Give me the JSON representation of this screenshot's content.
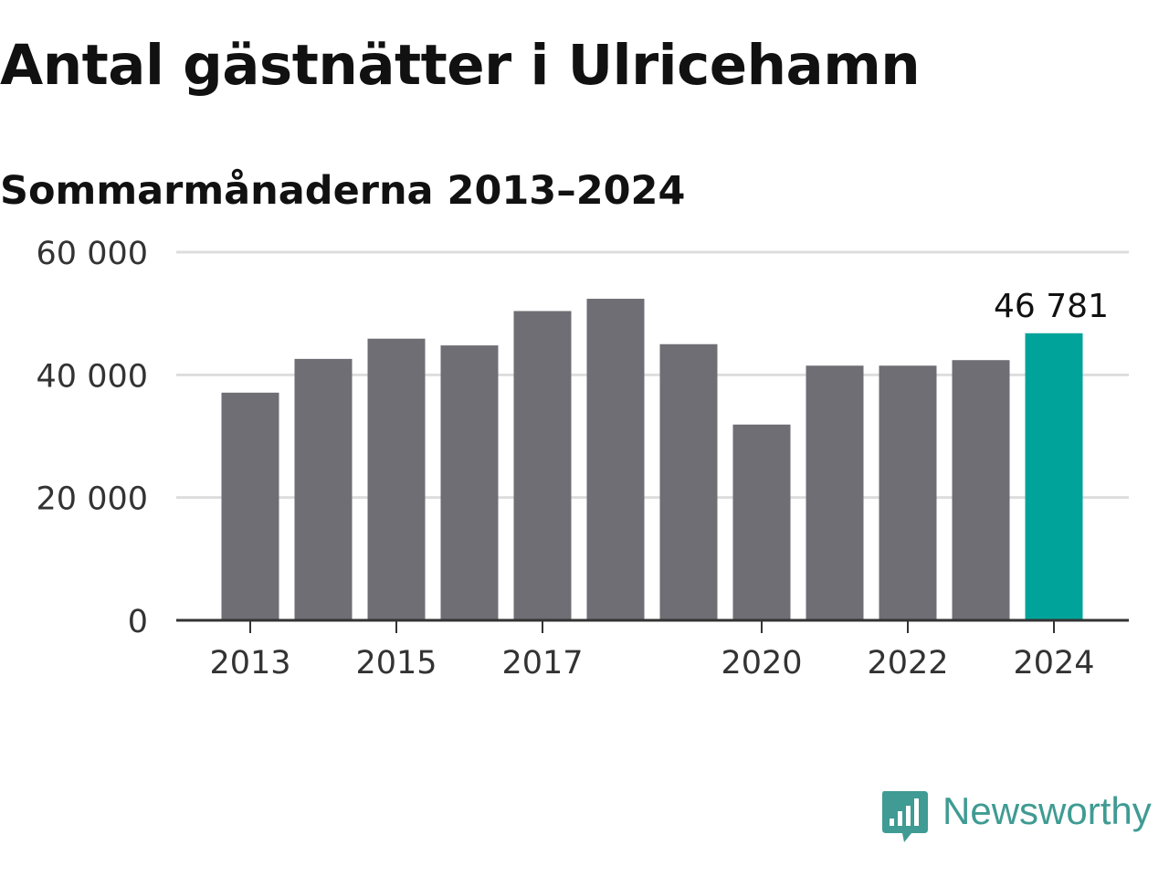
{
  "header": {
    "title": "Antal gästnätter i Ulricehamn",
    "subtitle": "Sommarmånaderna 2013–2024"
  },
  "brand": {
    "name": "Newsworthy",
    "icon": "newsworthy-bar-chart-icon",
    "color": "#3f9b93"
  },
  "colors": {
    "bar": "#6f6e74",
    "highlight": "#00a39a",
    "grid": "#dddddd",
    "axis": "#333333"
  },
  "chart_data": {
    "type": "bar",
    "categories": [
      "2013",
      "2014",
      "2015",
      "2016",
      "2017",
      "2018",
      "2019",
      "2020",
      "2021",
      "2022",
      "2023",
      "2024"
    ],
    "values": [
      37100,
      42600,
      45900,
      44800,
      50400,
      52400,
      45000,
      31900,
      41500,
      41500,
      42400,
      46781
    ],
    "ylim": [
      0,
      60000
    ],
    "yticks": [
      0,
      20000,
      40000,
      60000
    ],
    "ytick_labels": [
      "0",
      "20 000",
      "40 000",
      "60 000"
    ],
    "xtick_labels": [
      "2013",
      "2015",
      "2017",
      "2020",
      "2022",
      "2024"
    ],
    "highlight": {
      "category": "2024",
      "label": "46 781"
    },
    "grid": true,
    "legend": false
  }
}
